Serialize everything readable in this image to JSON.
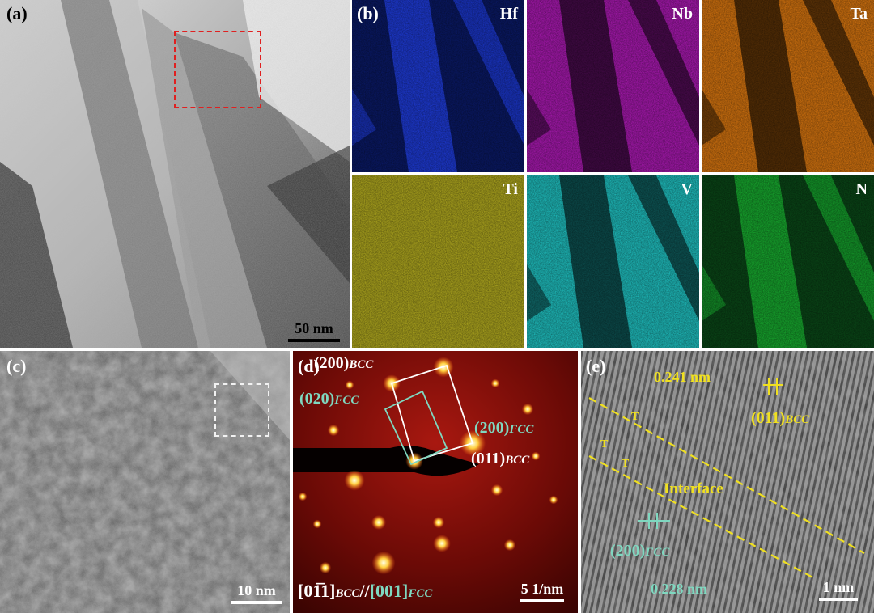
{
  "panels": {
    "a": {
      "label": "(a)",
      "scale": "50 nm"
    },
    "b": {
      "label": "(b)",
      "maps": [
        {
          "element": "Hf",
          "color": "#1f3de0"
        },
        {
          "element": "Nb",
          "color": "#b01ab8"
        },
        {
          "element": "Ta",
          "color": "#e07a10"
        },
        {
          "element": "Ti",
          "color": "#b8b020"
        },
        {
          "element": "V",
          "color": "#20c8c8"
        },
        {
          "element": "N",
          "color": "#18b030"
        }
      ]
    },
    "c": {
      "label": "(c)",
      "scale": "10 nm"
    },
    "d": {
      "label": "(d)",
      "scale": "5 1/nm",
      "spots": {
        "bcc200": {
          "base": "(200)",
          "sub": "BCC"
        },
        "fcc020": {
          "base": "(020)",
          "sub": "FCC"
        },
        "fcc200": {
          "base": "(200)",
          "sub": "FCC"
        },
        "bcc011": {
          "base": "(011)",
          "sub": "BCC"
        }
      },
      "zone": {
        "bcc": "[01̅1]",
        "bcc_sub": "BCC",
        "sep": "//",
        "fcc": "[001]",
        "fcc_sub": "FCC"
      }
    },
    "e": {
      "label": "(e)",
      "scale": "1 nm",
      "d_bcc": "0.241 nm",
      "plane_bcc": {
        "base": "(011)",
        "sub": "BCC"
      },
      "interface": "Interface",
      "plane_fcc": {
        "base": "(200)",
        "sub": "FCC"
      },
      "d_fcc": "0.228 nm",
      "marker": "T"
    }
  },
  "colors": {
    "bcc_text": "#ffffff",
    "fcc_text": "#7fd8c0",
    "yellow": "#f0e020",
    "red_box": "#e02020"
  }
}
